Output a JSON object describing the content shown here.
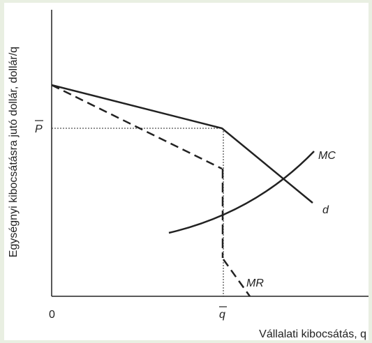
{
  "y_axis_label": "Egységnyi kibocsátásra jutó dollár, dollár/q",
  "x_axis_label": "Vállalati kibocsátás, q",
  "origin_label": "0",
  "x_mark_label": "q",
  "y_mark_label": "P",
  "curves": {
    "demand": "d",
    "marginal_revenue": "MR",
    "marginal_cost": "MC"
  }
}
